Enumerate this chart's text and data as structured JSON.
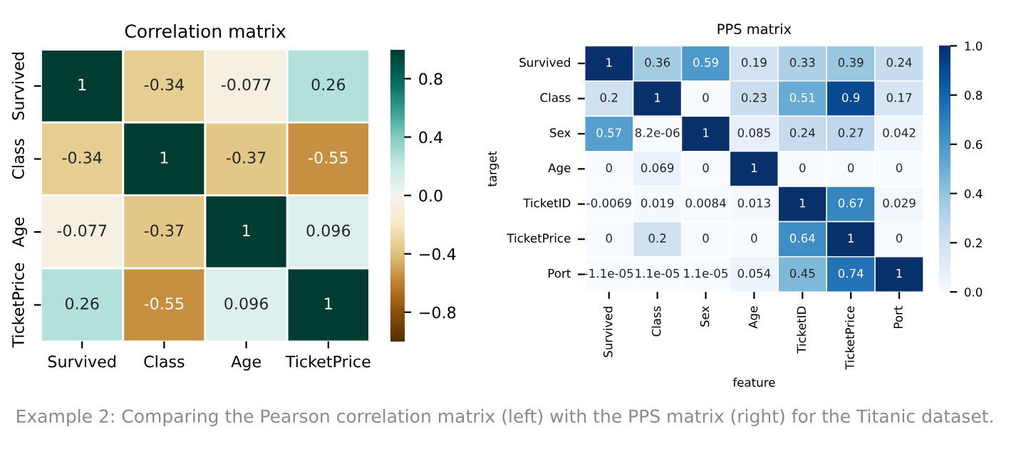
{
  "chart_data": [
    {
      "type": "heatmap",
      "title": "Correlation matrix",
      "categories": [
        "Survived",
        "Class",
        "Age",
        "TicketPrice"
      ],
      "y_categories": [
        "Survived",
        "Class",
        "Age",
        "TicketPrice"
      ],
      "cells": [
        [
          1,
          -0.34,
          -0.077,
          0.26
        ],
        [
          -0.34,
          1,
          -0.37,
          -0.55
        ],
        [
          -0.077,
          -0.37,
          1,
          0.096
        ],
        [
          0.26,
          -0.55,
          0.096,
          1
        ]
      ],
      "data_labels": true,
      "clim": [
        -1,
        1
      ],
      "cticks": [
        {
          "value": -0.8,
          "label": "−0.8"
        },
        {
          "value": -0.4,
          "label": "−0.4"
        },
        {
          "value": 0.0,
          "label": "0.0"
        },
        {
          "value": 0.4,
          "label": "0.4"
        },
        {
          "value": 0.8,
          "label": "0.8"
        }
      ],
      "annotations": [
        "Example 2: Comparing the Pearson correlation matrix (left) with the PPS matrix (right) for the Titanic dataset."
      ]
    },
    {
      "type": "heatmap",
      "title": "PPS matrix",
      "xlabel": "feature",
      "ylabel": "target",
      "categories": [
        "Survived",
        "Class",
        "Sex",
        "Age",
        "TicketID",
        "TicketPrice",
        "Port"
      ],
      "y_categories": [
        "Survived",
        "Class",
        "Sex",
        "Age",
        "TicketID",
        "TicketPrice",
        "Port"
      ],
      "cells": [
        [
          1,
          0.36,
          0.59,
          0.19,
          0.33,
          0.39,
          0.24
        ],
        [
          0.2,
          1,
          0,
          0.23,
          0.51,
          0.9,
          0.17
        ],
        [
          0.57,
          8.2e-06,
          1,
          0.085,
          0.24,
          0.27,
          0.042
        ],
        [
          0,
          0.069,
          0,
          1,
          0,
          0,
          0
        ],
        [
          -0.0069,
          0.019,
          0.0084,
          0.013,
          1,
          0.67,
          0.029
        ],
        [
          0,
          0.2,
          0,
          0,
          0.64,
          1,
          0
        ],
        [
          -1.1e-05,
          1.1e-05,
          1.1e-05,
          0.054,
          0.45,
          0.74,
          1
        ]
      ],
      "cell_labels": [
        [
          "1",
          "0.36",
          "0.59",
          "0.19",
          "0.33",
          "0.39",
          "0.24"
        ],
        [
          "0.2",
          "1",
          "0",
          "0.23",
          "0.51",
          "0.9",
          "0.17"
        ],
        [
          "0.57",
          "8.2e-06",
          "1",
          "0.085",
          "0.24",
          "0.27",
          "0.042"
        ],
        [
          "0",
          "0.069",
          "0",
          "1",
          "0",
          "0",
          "0"
        ],
        [
          "-0.0069",
          "0.019",
          "0.0084",
          "0.013",
          "1",
          "0.67",
          "0.029"
        ],
        [
          "0",
          "0.2",
          "0",
          "0",
          "0.64",
          "1",
          "0"
        ],
        [
          "-1.1e-05",
          "1.1e-05",
          "1.1e-05",
          "0.054",
          "0.45",
          "0.74",
          "1"
        ]
      ],
      "clim": [
        0,
        1
      ],
      "cticks": [
        {
          "value": 0,
          "label": "0.0"
        },
        0.2,
        0.4,
        0.6,
        0.8,
        {
          "value": 1,
          "label": "1.0"
        }
      ]
    }
  ]
}
